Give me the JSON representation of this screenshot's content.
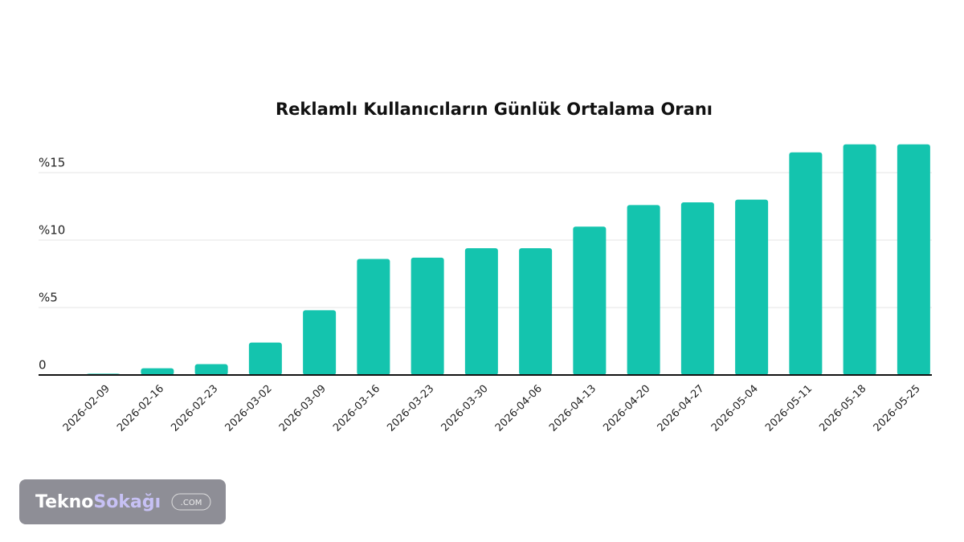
{
  "chart_data": {
    "type": "bar",
    "title": "Reklamlı Kullanıcıların Günlük Ortalama Oranı",
    "categories": [
      "2026-02-09",
      "2026-02-16",
      "2026-02-23",
      "2026-03-02",
      "2026-03-09",
      "2026-03-16",
      "2026-03-23",
      "2026-03-30",
      "2026-04-06",
      "2026-04-13",
      "2026-04-20",
      "2026-04-27",
      "2026-05-04",
      "2026-05-11",
      "2026-05-18",
      "2026-05-25"
    ],
    "values": [
      0.1,
      0.5,
      0.8,
      2.4,
      4.8,
      8.6,
      8.7,
      9.4,
      9.4,
      11.0,
      12.6,
      12.8,
      13.0,
      16.5,
      17.1,
      17.1
    ],
    "color": "#14c4ae",
    "ylim": [
      0,
      17.5
    ],
    "yticks": [
      0,
      {
        "value": 5,
        "label": "%5"
      },
      {
        "value": 10,
        "label": "%10"
      },
      {
        "value": 15,
        "label": "%15"
      }
    ],
    "grid": true
  },
  "watermark": {
    "brand_first": "Tekno",
    "brand_second": "Sokağı",
    "suffix": ".COM"
  }
}
